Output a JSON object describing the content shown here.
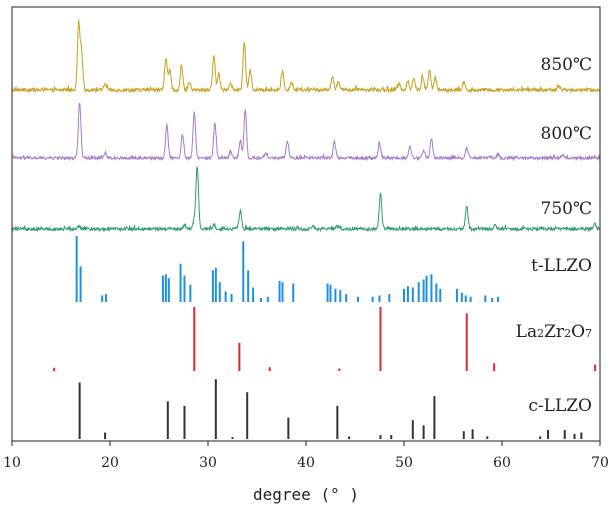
{
  "chart_data": {
    "type": "line",
    "xlabel": "degree (° )",
    "xlim": [
      10,
      70
    ],
    "xticks": [
      10,
      20,
      30,
      40,
      50,
      60,
      70
    ],
    "y_ticks_shown": false,
    "grid": false,
    "legend": "inline labels at right",
    "series": [
      {
        "name": "850℃",
        "color": "#C8A020",
        "style": "xrd-pattern",
        "peaks": [
          {
            "x": 16.8,
            "h": 1.0
          },
          {
            "x": 17.1,
            "h": 0.55
          },
          {
            "x": 19.5,
            "h": 0.1
          },
          {
            "x": 25.7,
            "h": 0.48
          },
          {
            "x": 26.1,
            "h": 0.3
          },
          {
            "x": 27.3,
            "h": 0.36
          },
          {
            "x": 28.1,
            "h": 0.12
          },
          {
            "x": 30.6,
            "h": 0.52
          },
          {
            "x": 31.1,
            "h": 0.25
          },
          {
            "x": 32.3,
            "h": 0.1
          },
          {
            "x": 33.7,
            "h": 0.72
          },
          {
            "x": 34.3,
            "h": 0.3
          },
          {
            "x": 37.6,
            "h": 0.28
          },
          {
            "x": 38.5,
            "h": 0.12
          },
          {
            "x": 42.7,
            "h": 0.22
          },
          {
            "x": 43.3,
            "h": 0.12
          },
          {
            "x": 49.5,
            "h": 0.1
          },
          {
            "x": 50.4,
            "h": 0.14
          },
          {
            "x": 51.0,
            "h": 0.16
          },
          {
            "x": 51.9,
            "h": 0.2
          },
          {
            "x": 52.6,
            "h": 0.3
          },
          {
            "x": 53.2,
            "h": 0.18
          },
          {
            "x": 56.1,
            "h": 0.12
          },
          {
            "x": 65.8,
            "h": 0.06
          }
        ]
      },
      {
        "name": "800℃",
        "color": "#A77CC8",
        "style": "xrd-pattern",
        "peaks": [
          {
            "x": 16.9,
            "h": 1.0
          },
          {
            "x": 19.5,
            "h": 0.08
          },
          {
            "x": 25.8,
            "h": 0.6
          },
          {
            "x": 27.4,
            "h": 0.42
          },
          {
            "x": 28.6,
            "h": 0.82
          },
          {
            "x": 30.7,
            "h": 0.62
          },
          {
            "x": 32.3,
            "h": 0.12
          },
          {
            "x": 33.3,
            "h": 0.3
          },
          {
            "x": 33.8,
            "h": 0.86
          },
          {
            "x": 35.9,
            "h": 0.08
          },
          {
            "x": 38.1,
            "h": 0.3
          },
          {
            "x": 42.9,
            "h": 0.3
          },
          {
            "x": 47.5,
            "h": 0.26
          },
          {
            "x": 50.6,
            "h": 0.2
          },
          {
            "x": 52.0,
            "h": 0.12
          },
          {
            "x": 52.8,
            "h": 0.34
          },
          {
            "x": 56.4,
            "h": 0.18
          },
          {
            "x": 59.6,
            "h": 0.06
          },
          {
            "x": 66.2,
            "h": 0.05
          }
        ]
      },
      {
        "name": "750℃",
        "color": "#2E9D68",
        "style": "xrd-pattern",
        "peaks": [
          {
            "x": 16.8,
            "h": 0.04
          },
          {
            "x": 27.6,
            "h": 0.06
          },
          {
            "x": 28.6,
            "h": 0.14
          },
          {
            "x": 28.9,
            "h": 1.0
          },
          {
            "x": 30.6,
            "h": 0.06
          },
          {
            "x": 33.3,
            "h": 0.3
          },
          {
            "x": 40.7,
            "h": 0.04
          },
          {
            "x": 43.2,
            "h": 0.04
          },
          {
            "x": 47.6,
            "h": 0.56
          },
          {
            "x": 56.4,
            "h": 0.38
          },
          {
            "x": 59.3,
            "h": 0.06
          },
          {
            "x": 69.5,
            "h": 0.08
          }
        ]
      },
      {
        "name": "t-LLZO",
        "color": "#1E90E0",
        "style": "reference-sticks",
        "peaks": [
          {
            "x": 16.6,
            "h": 1.0
          },
          {
            "x": 17.0,
            "h": 0.54
          },
          {
            "x": 19.2,
            "h": 0.1
          },
          {
            "x": 19.6,
            "h": 0.12
          },
          {
            "x": 25.4,
            "h": 0.4
          },
          {
            "x": 25.7,
            "h": 0.42
          },
          {
            "x": 26.0,
            "h": 0.36
          },
          {
            "x": 27.2,
            "h": 0.58
          },
          {
            "x": 27.6,
            "h": 0.4
          },
          {
            "x": 28.2,
            "h": 0.26
          },
          {
            "x": 30.5,
            "h": 0.48
          },
          {
            "x": 30.8,
            "h": 0.52
          },
          {
            "x": 31.2,
            "h": 0.3
          },
          {
            "x": 31.8,
            "h": 0.16
          },
          {
            "x": 32.4,
            "h": 0.12
          },
          {
            "x": 33.6,
            "h": 0.92
          },
          {
            "x": 34.1,
            "h": 0.48
          },
          {
            "x": 34.6,
            "h": 0.22
          },
          {
            "x": 35.4,
            "h": 0.06
          },
          {
            "x": 36.1,
            "h": 0.08
          },
          {
            "x": 37.3,
            "h": 0.32
          },
          {
            "x": 37.6,
            "h": 0.3
          },
          {
            "x": 38.7,
            "h": 0.28
          },
          {
            "x": 42.2,
            "h": 0.28
          },
          {
            "x": 42.5,
            "h": 0.26
          },
          {
            "x": 43.0,
            "h": 0.2
          },
          {
            "x": 43.5,
            "h": 0.18
          },
          {
            "x": 44.1,
            "h": 0.12
          },
          {
            "x": 45.3,
            "h": 0.08
          },
          {
            "x": 46.8,
            "h": 0.08
          },
          {
            "x": 47.5,
            "h": 0.1
          },
          {
            "x": 48.5,
            "h": 0.12
          },
          {
            "x": 50.0,
            "h": 0.2
          },
          {
            "x": 50.4,
            "h": 0.24
          },
          {
            "x": 50.9,
            "h": 0.22
          },
          {
            "x": 51.5,
            "h": 0.3
          },
          {
            "x": 52.0,
            "h": 0.34
          },
          {
            "x": 52.3,
            "h": 0.4
          },
          {
            "x": 52.8,
            "h": 0.42
          },
          {
            "x": 53.3,
            "h": 0.28
          },
          {
            "x": 53.7,
            "h": 0.2
          },
          {
            "x": 55.4,
            "h": 0.2
          },
          {
            "x": 55.9,
            "h": 0.14
          },
          {
            "x": 56.3,
            "h": 0.1
          },
          {
            "x": 56.8,
            "h": 0.08
          },
          {
            "x": 58.3,
            "h": 0.1
          },
          {
            "x": 59.0,
            "h": 0.06
          },
          {
            "x": 59.6,
            "h": 0.08
          }
        ]
      },
      {
        "name": "La2Zr2O7",
        "name_parts": [
          "La",
          "2",
          "Zr",
          "2",
          "O",
          "7"
        ],
        "color": "#E0262E",
        "style": "reference-sticks",
        "peaks": [
          {
            "x": 14.3,
            "h": 0.05
          },
          {
            "x": 28.6,
            "h": 1.0
          },
          {
            "x": 33.2,
            "h": 0.44
          },
          {
            "x": 36.3,
            "h": 0.06
          },
          {
            "x": 43.4,
            "h": 0.04
          },
          {
            "x": 47.6,
            "h": 1.0
          },
          {
            "x": 56.4,
            "h": 0.9
          },
          {
            "x": 59.2,
            "h": 0.12
          },
          {
            "x": 69.5,
            "h": 0.1
          }
        ]
      },
      {
        "name": "c-LLZO",
        "color": "#333333",
        "style": "reference-sticks",
        "peaks": [
          {
            "x": 16.9,
            "h": 0.87
          },
          {
            "x": 19.5,
            "h": 0.1
          },
          {
            "x": 25.9,
            "h": 0.58
          },
          {
            "x": 27.6,
            "h": 0.51
          },
          {
            "x": 30.8,
            "h": 0.92
          },
          {
            "x": 32.5,
            "h": 0.03
          },
          {
            "x": 34.0,
            "h": 0.72
          },
          {
            "x": 38.2,
            "h": 0.33
          },
          {
            "x": 43.2,
            "h": 0.51
          },
          {
            "x": 44.4,
            "h": 0.04
          },
          {
            "x": 47.6,
            "h": 0.06
          },
          {
            "x": 48.7,
            "h": 0.06
          },
          {
            "x": 50.9,
            "h": 0.29
          },
          {
            "x": 52.0,
            "h": 0.21
          },
          {
            "x": 53.1,
            "h": 0.66
          },
          {
            "x": 56.1,
            "h": 0.12
          },
          {
            "x": 57.0,
            "h": 0.15
          },
          {
            "x": 58.5,
            "h": 0.04
          },
          {
            "x": 63.9,
            "h": 0.04
          },
          {
            "x": 64.7,
            "h": 0.14
          },
          {
            "x": 66.4,
            "h": 0.14
          },
          {
            "x": 67.4,
            "h": 0.08
          },
          {
            "x": 68.1,
            "h": 0.1
          }
        ]
      }
    ]
  }
}
